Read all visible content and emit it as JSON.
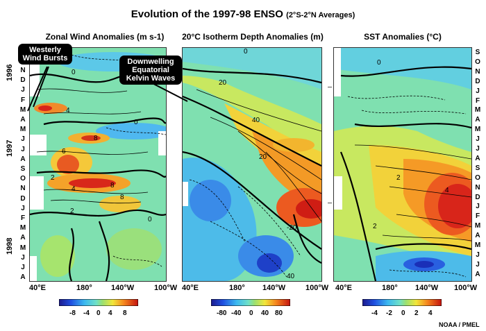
{
  "title": {
    "main": "Evolution of the 1997-98 ENSO",
    "sub": "(2°S-2°N Averages)"
  },
  "panels": [
    {
      "title": "Zonal Wind Anomalies (m s-1)",
      "colorbar_ticks": [
        "-8",
        "-4",
        "0",
        "4",
        "8"
      ]
    },
    {
      "title": "20°C Isotherm Depth Anomalies (m)",
      "colorbar_ticks": [
        "-80",
        "-40",
        "0",
        "40",
        "80"
      ]
    },
    {
      "title": "SST Anomalies (°C)",
      "colorbar_ticks": [
        "-4",
        "-2",
        "0",
        "2",
        "4"
      ]
    }
  ],
  "x_ticks": [
    "40°E",
    "180°",
    "140°W",
    "100°W"
  ],
  "months_left": [
    "N",
    "D",
    "J",
    "F",
    "M",
    "A",
    "M",
    "J",
    "J",
    "A",
    "S",
    "O",
    "N",
    "D",
    "J",
    "F",
    "M",
    "A",
    "M",
    "J",
    "J",
    "A"
  ],
  "months_right": [
    "S",
    "O",
    "N",
    "D",
    "J",
    "F",
    "M",
    "A",
    "M",
    "J",
    "J",
    "A",
    "S",
    "O",
    "N",
    "D",
    "J",
    "F",
    "M",
    "A",
    "M",
    "J",
    "J",
    "A"
  ],
  "years": [
    "1996",
    "1997",
    "1998"
  ],
  "callouts": {
    "westerly": "Westerly Wind Bursts",
    "kelvin": "Downwelling Equatorial Kelvin Waves"
  },
  "contour_labels": {
    "wind": [
      "0",
      "4",
      "8",
      "8",
      "6",
      "2",
      "4",
      "8",
      "0",
      "2",
      "0"
    ],
    "depth": [
      "0",
      "20",
      "40",
      "20",
      "-20",
      "40"
    ],
    "sst": [
      "0",
      "2",
      "4",
      "2"
    ]
  },
  "credit": "NOAA / PMEL",
  "colors": {
    "neg_strong": "#1a2fd6",
    "neutral": "#66e07a",
    "pos_strong": "#d81414"
  }
}
